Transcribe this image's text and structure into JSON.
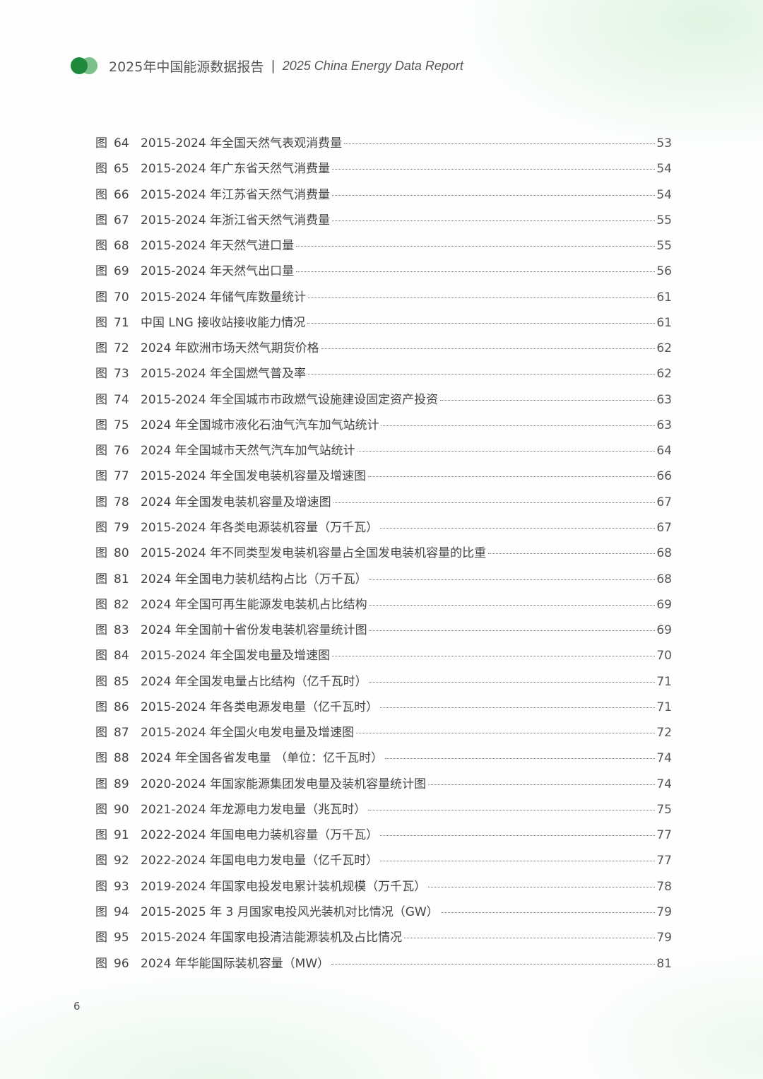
{
  "header": {
    "title_cn": "2025年中国能源数据报告",
    "separator": "|",
    "title_en": "2025 China Energy Data Report",
    "logo_colors": [
      "#1f8a3c",
      "#7cc08a"
    ]
  },
  "toc": [
    {
      "label": "图",
      "num": "64",
      "title": "2015-2024 年全国天然气表观消费量",
      "page": "53"
    },
    {
      "label": "图",
      "num": "65",
      "title": "2015-2024 年广东省天然气消费量",
      "page": "54"
    },
    {
      "label": "图",
      "num": "66",
      "title": "2015-2024 年江苏省天然气消费量",
      "page": "54"
    },
    {
      "label": "图",
      "num": "67",
      "title": "2015-2024 年浙江省天然气消费量",
      "page": "55"
    },
    {
      "label": "图",
      "num": "68",
      "title": "2015-2024 年天然气进口量",
      "page": "55"
    },
    {
      "label": "图",
      "num": "69",
      "title": "2015-2024 年天然气出口量",
      "page": "56"
    },
    {
      "label": "图",
      "num": "70",
      "title": "2015-2024 年储气库数量统计",
      "page": "61"
    },
    {
      "label": "图",
      "num": "71",
      "title": "中国 LNG 接收站接收能力情况",
      "page": "61"
    },
    {
      "label": "图",
      "num": "72",
      "title": "2024 年欧洲市场天然气期货价格",
      "page": "62"
    },
    {
      "label": "图",
      "num": "73",
      "title": "2015-2024 年全国燃气普及率",
      "page": "62"
    },
    {
      "label": "图",
      "num": "74",
      "title": "2015-2024 年全国城市市政燃气设施建设固定资产投资",
      "page": "63"
    },
    {
      "label": "图",
      "num": "75",
      "title": "2024 年全国城市液化石油气汽车加气站统计",
      "page": "63"
    },
    {
      "label": "图",
      "num": "76",
      "title": "2024 年全国城市天然气汽车加气站统计",
      "page": "64"
    },
    {
      "label": "图",
      "num": "77",
      "title": "2015-2024 年全国发电装机容量及增速图",
      "page": "66"
    },
    {
      "label": "图",
      "num": "78",
      "title": "2024 年全国发电装机容量及增速图",
      "page": "67"
    },
    {
      "label": "图",
      "num": "79",
      "title": "2015-2024 年各类电源装机容量（万千瓦）",
      "page": "67"
    },
    {
      "label": "图",
      "num": "80",
      "title": "2015-2024 年不同类型发电装机容量占全国发电装机容量的比重",
      "page": "68"
    },
    {
      "label": "图",
      "num": "81",
      "title": "2024 年全国电力装机结构占比（万千瓦）",
      "page": "68"
    },
    {
      "label": "图",
      "num": "82",
      "title": "2024 年全国可再生能源发电装机占比结构",
      "page": "69"
    },
    {
      "label": "图",
      "num": "83",
      "title": "2024 年全国前十省份发电装机容量统计图",
      "page": "69"
    },
    {
      "label": "图",
      "num": "84",
      "title": "2015-2024 年全国发电量及增速图",
      "page": "70"
    },
    {
      "label": "图",
      "num": "85",
      "title": "2024 年全国发电量占比结构（亿千瓦时）",
      "page": "71"
    },
    {
      "label": "图",
      "num": "86",
      "title": "2015-2024 年各类电源发电量（亿千瓦时）",
      "page": "71"
    },
    {
      "label": "图",
      "num": "87",
      "title": "2015-2024 年全国火电发电量及增速图",
      "page": "72"
    },
    {
      "label": "图",
      "num": "88",
      "title": "2024 年全国各省发电量 （单位：亿千瓦时）",
      "page": "74"
    },
    {
      "label": "图",
      "num": "89",
      "title": "2020-2024 年国家能源集团发电量及装机容量统计图",
      "page": "74"
    },
    {
      "label": "图",
      "num": "90",
      "title": "2021-2024 年龙源电力发电量（兆瓦时）",
      "page": "75"
    },
    {
      "label": "图",
      "num": "91",
      "title": "2022-2024 年国电电力装机容量（万千瓦）",
      "page": "77"
    },
    {
      "label": "图",
      "num": "92",
      "title": "2022-2024 年国电电力发电量（亿千瓦时）",
      "page": "77"
    },
    {
      "label": "图",
      "num": "93",
      "title": "2019-2024 年国家电投发电累计装机规模（万千瓦）",
      "page": "78"
    },
    {
      "label": "图",
      "num": "94",
      "title": "2015-2025 年 3 月国家电投风光装机对比情况（GW）",
      "page": "79"
    },
    {
      "label": "图",
      "num": "95",
      "title": "2015-2024 年国家电投清洁能源装机及占比情况",
      "page": "79"
    },
    {
      "label": "图",
      "num": "96",
      "title": "2024 年华能国际装机容量（MW）",
      "page": "81"
    }
  ],
  "footer": {
    "page_number": "6"
  }
}
